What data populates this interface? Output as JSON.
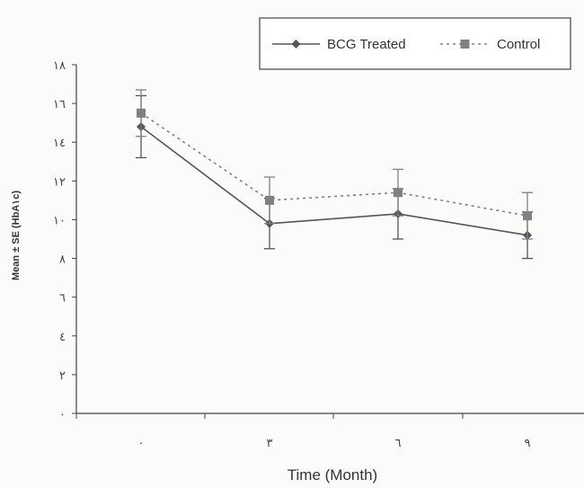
{
  "chart_data": {
    "type": "line",
    "title": "",
    "xlabel": "Time (Month)",
    "ylabel": "Mean ± SE  (HbA١c)",
    "x": [
      "٠",
      "٣",
      "٦",
      "٩"
    ],
    "y_ticks": [
      "٠",
      "٢",
      "٤",
      "٦",
      "٨",
      "١٠",
      "١٢",
      "١٤",
      "١٦",
      "١٨"
    ],
    "ylim": [
      0,
      18
    ],
    "grid": false,
    "legend": "top-right",
    "series": [
      {
        "name": "BCG Treated",
        "style": "solid",
        "marker": "diamond",
        "color": "#555555",
        "values": [
          14.8,
          9.8,
          10.3,
          9.2
        ],
        "error": [
          1.6,
          1.3,
          1.3,
          1.2
        ]
      },
      {
        "name": "Control",
        "style": "dotted",
        "marker": "square",
        "color": "#808080",
        "values": [
          15.5,
          11.0,
          11.4,
          10.2
        ],
        "error": [
          1.2,
          1.2,
          1.2,
          1.2
        ]
      }
    ]
  }
}
